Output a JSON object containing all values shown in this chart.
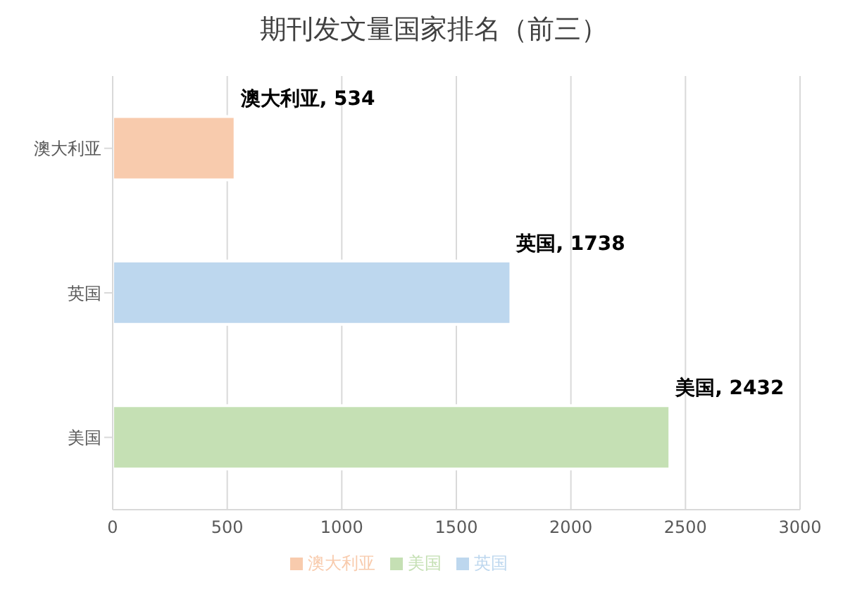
{
  "chart_data": {
    "type": "bar",
    "title": "期刊发文量国家排名（前三）",
    "orientation": "horizontal",
    "stacked": true,
    "categories": [
      "澳大利亚",
      "英国",
      "美国"
    ],
    "series": [
      {
        "name": "美国",
        "color": "#c5e0b4",
        "values": [
          null,
          null,
          2432
        ],
        "value_labels": [
          null,
          null,
          "美国, 2432"
        ]
      },
      {
        "name": "英国",
        "color": "#bdd7ee",
        "values": [
          null,
          1738,
          null
        ],
        "value_labels": [
          null,
          "英国, 1738",
          null
        ]
      },
      {
        "name": "澳大利亚",
        "color": "#f8cbad",
        "values": [
          534,
          null,
          null
        ],
        "value_labels": [
          "澳大利亚, 534",
          null,
          null
        ]
      }
    ],
    "xlim": [
      0,
      3000
    ],
    "xticks": [
      0,
      500,
      1000,
      1500,
      2000,
      2500,
      3000
    ],
    "grid": "x",
    "legend": "bottom"
  }
}
